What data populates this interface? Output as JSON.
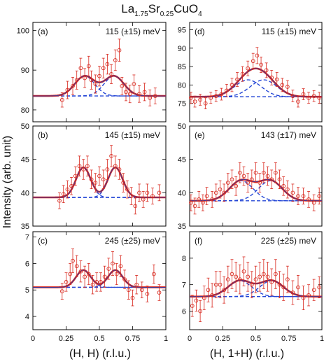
{
  "figure": {
    "title_main": "La",
    "title_sub1": "1.75",
    "title_mid": "Sr",
    "title_sub2": "0.25",
    "title_end": "CuO",
    "title_sub3": "4",
    "ylabel": "Intensity (arb. unit)",
    "xlabel_left": "(H, H) (r.l.u.)",
    "xlabel_right": "(H, 1+H) (r.l.u.)",
    "colors": {
      "data": "#d82a20",
      "fit": "#d8241c",
      "components": "#2547d6"
    }
  },
  "chart_data": [
    {
      "id": "a",
      "type": "scatter",
      "panel_label": "(a)",
      "energy_label": "115 (±15) meV",
      "xlim": [
        0,
        1
      ],
      "ylim": [
        77,
        102
      ],
      "yticks": [
        80,
        90,
        100
      ],
      "xticks": [
        0,
        0.25,
        0.5,
        0.75,
        1
      ],
      "xtick_labels": [
        "0",
        "0.25",
        "0.5",
        "0.75",
        "1"
      ],
      "show_xtick_labels": false,
      "fit": {
        "baseline": 83.5,
        "peaks": [
          {
            "center": 0.39,
            "amp": 5.0,
            "sigma": 0.075
          },
          {
            "center": 0.61,
            "amp": 5.0,
            "sigma": 0.075
          }
        ]
      },
      "points": [
        [
          0.22,
          82.5,
          1.8
        ],
        [
          0.26,
          85.0,
          2.2
        ],
        [
          0.3,
          86.0,
          2.2
        ],
        [
          0.33,
          87.5,
          2.3
        ],
        [
          0.36,
          90.5,
          2.5
        ],
        [
          0.39,
          88.0,
          2.4
        ],
        [
          0.42,
          91.0,
          2.5
        ],
        [
          0.44,
          87.5,
          2.3
        ],
        [
          0.47,
          86.5,
          2.3
        ],
        [
          0.5,
          88.5,
          2.5
        ],
        [
          0.53,
          90.5,
          2.5
        ],
        [
          0.56,
          91.5,
          2.5
        ],
        [
          0.59,
          89.0,
          2.4
        ],
        [
          0.62,
          92.5,
          2.6
        ],
        [
          0.65,
          95.0,
          2.8
        ],
        [
          0.67,
          86.0,
          2.2
        ],
        [
          0.7,
          84.5,
          2.2
        ],
        [
          0.73,
          84.0,
          2.2
        ],
        [
          0.76,
          86.5,
          2.3
        ],
        [
          0.8,
          84.0,
          2.1
        ],
        [
          0.84,
          84.5,
          2.2
        ],
        [
          0.88,
          83.0,
          2.0
        ],
        [
          0.92,
          83.5,
          2.0
        ]
      ]
    },
    {
      "id": "b",
      "type": "scatter",
      "panel_label": "(b)",
      "energy_label": "145 (±15) meV",
      "xlim": [
        0,
        1
      ],
      "ylim": [
        35,
        50
      ],
      "yticks": [
        35,
        40,
        45,
        50
      ],
      "xticks": [
        0,
        0.25,
        0.5,
        0.75,
        1
      ],
      "xtick_labels": [
        "0",
        "0.25",
        "0.5",
        "0.75",
        "1"
      ],
      "show_xtick_labels": false,
      "fit": {
        "baseline": 39.3,
        "peaks": [
          {
            "center": 0.38,
            "amp": 4.5,
            "sigma": 0.055
          },
          {
            "center": 0.62,
            "amp": 4.5,
            "sigma": 0.055
          }
        ]
      },
      "points": [
        [
          0.2,
          38.8,
          1.2
        ],
        [
          0.23,
          39.8,
          1.3
        ],
        [
          0.26,
          40.5,
          1.3
        ],
        [
          0.29,
          41.0,
          1.3
        ],
        [
          0.32,
          42.5,
          1.4
        ],
        [
          0.35,
          44.0,
          1.5
        ],
        [
          0.38,
          43.5,
          1.5
        ],
        [
          0.41,
          44.0,
          1.5
        ],
        [
          0.44,
          42.0,
          1.4
        ],
        [
          0.47,
          41.5,
          1.4
        ],
        [
          0.5,
          42.5,
          1.4
        ],
        [
          0.53,
          42.0,
          1.4
        ],
        [
          0.56,
          43.5,
          1.5
        ],
        [
          0.59,
          45.5,
          1.6
        ],
        [
          0.62,
          44.0,
          1.5
        ],
        [
          0.65,
          43.5,
          1.5
        ],
        [
          0.68,
          41.5,
          1.4
        ],
        [
          0.71,
          40.5,
          1.3
        ],
        [
          0.74,
          39.5,
          1.3
        ],
        [
          0.77,
          38.0,
          1.2
        ],
        [
          0.8,
          40.0,
          1.3
        ],
        [
          0.83,
          39.0,
          1.2
        ],
        [
          0.86,
          40.0,
          1.3
        ],
        [
          0.9,
          39.5,
          1.2
        ],
        [
          0.95,
          40.0,
          1.2
        ]
      ]
    },
    {
      "id": "c",
      "type": "scatter",
      "panel_label": "(c)",
      "energy_label": "245 (±25) meV",
      "xlim": [
        0,
        1
      ],
      "ylim": [
        3.5,
        7.2
      ],
      "yticks": [
        4,
        5,
        6,
        7
      ],
      "xticks": [
        0,
        0.25,
        0.5,
        0.75,
        1
      ],
      "xtick_labels": [
        "0",
        "0.25",
        "0.5",
        "0.75",
        "1"
      ],
      "show_xtick_labels": true,
      "fit": {
        "baseline": 5.1,
        "peaks": [
          {
            "center": 0.38,
            "amp": 0.65,
            "sigma": 0.055
          },
          {
            "center": 0.62,
            "amp": 0.65,
            "sigma": 0.055
          }
        ]
      },
      "points": [
        [
          0.22,
          4.95,
          0.3
        ],
        [
          0.25,
          5.3,
          0.35
        ],
        [
          0.28,
          5.6,
          0.4
        ],
        [
          0.3,
          6.1,
          0.45
        ],
        [
          0.33,
          5.9,
          0.4
        ],
        [
          0.36,
          5.7,
          0.4
        ],
        [
          0.39,
          5.5,
          0.4
        ],
        [
          0.42,
          5.6,
          0.4
        ],
        [
          0.45,
          5.2,
          0.35
        ],
        [
          0.48,
          5.3,
          0.35
        ],
        [
          0.51,
          5.3,
          0.35
        ],
        [
          0.54,
          5.5,
          0.4
        ],
        [
          0.57,
          5.8,
          0.4
        ],
        [
          0.6,
          6.0,
          0.45
        ],
        [
          0.63,
          5.6,
          0.4
        ],
        [
          0.66,
          5.9,
          0.4
        ],
        [
          0.69,
          5.4,
          0.35
        ],
        [
          0.72,
          5.0,
          0.35
        ],
        [
          0.75,
          4.7,
          0.3
        ],
        [
          0.78,
          5.2,
          0.35
        ],
        [
          0.82,
          5.0,
          0.3
        ],
        [
          0.86,
          4.85,
          0.3
        ],
        [
          0.91,
          5.6,
          0.35
        ],
        [
          0.95,
          4.9,
          0.3
        ]
      ]
    },
    {
      "id": "d",
      "type": "scatter",
      "panel_label": "(d)",
      "energy_label": "115 (±15) meV",
      "xlim": [
        0,
        1
      ],
      "ylim": [
        70,
        97
      ],
      "yticks": [
        75,
        80,
        85,
        90,
        95
      ],
      "xticks": [
        0,
        0.25,
        0.5,
        0.75,
        1
      ],
      "xtick_labels": [
        "0",
        "0.25",
        "0.5",
        "0.75",
        "1"
      ],
      "show_xtick_labels": false,
      "fit": {
        "baseline": 76.8,
        "peaks": [
          {
            "center": 0.44,
            "amp": 4.6,
            "sigma": 0.1
          },
          {
            "center": 0.56,
            "amp": 4.6,
            "sigma": 0.1
          }
        ]
      },
      "points": [
        [
          0.01,
          76.5,
          1.5
        ],
        [
          0.04,
          75.5,
          1.5
        ],
        [
          0.08,
          76.0,
          1.5
        ],
        [
          0.12,
          75.0,
          1.5
        ],
        [
          0.16,
          76.5,
          1.5
        ],
        [
          0.2,
          77.0,
          1.5
        ],
        [
          0.24,
          77.5,
          1.6
        ],
        [
          0.28,
          78.5,
          1.7
        ],
        [
          0.32,
          80.0,
          1.8
        ],
        [
          0.36,
          81.5,
          1.9
        ],
        [
          0.4,
          83.0,
          2.0
        ],
        [
          0.44,
          84.5,
          2.0
        ],
        [
          0.48,
          86.5,
          2.1
        ],
        [
          0.51,
          88.0,
          2.2
        ],
        [
          0.54,
          85.5,
          2.1
        ],
        [
          0.58,
          84.0,
          2.0
        ],
        [
          0.62,
          82.0,
          2.0
        ],
        [
          0.66,
          81.5,
          1.9
        ],
        [
          0.7,
          80.0,
          1.8
        ],
        [
          0.74,
          79.5,
          1.7
        ],
        [
          0.78,
          77.0,
          1.6
        ],
        [
          0.82,
          75.5,
          1.5
        ],
        [
          0.86,
          77.5,
          1.5
        ],
        [
          0.9,
          76.5,
          1.5
        ],
        [
          0.94,
          77.0,
          1.5
        ],
        [
          0.98,
          76.5,
          1.5
        ]
      ]
    },
    {
      "id": "e",
      "type": "scatter",
      "panel_label": "(e)",
      "energy_label": "143 (±17) meV",
      "xlim": [
        0,
        1
      ],
      "ylim": [
        35,
        50
      ],
      "yticks": [
        35,
        40,
        45,
        50
      ],
      "xticks": [
        0,
        0.25,
        0.5,
        0.75,
        1
      ],
      "xtick_labels": [
        "0",
        "0.25",
        "0.5",
        "0.75",
        "1"
      ],
      "show_xtick_labels": false,
      "fit": {
        "baseline": 38.8,
        "peaks": [
          {
            "center": 0.39,
            "amp": 3.0,
            "sigma": 0.09
          },
          {
            "center": 0.61,
            "amp": 3.0,
            "sigma": 0.09
          }
        ]
      },
      "points": [
        [
          0.01,
          38.5,
          1.2
        ],
        [
          0.04,
          38.0,
          1.2
        ],
        [
          0.07,
          39.0,
          1.2
        ],
        [
          0.1,
          38.5,
          1.2
        ],
        [
          0.13,
          39.5,
          1.3
        ],
        [
          0.17,
          39.0,
          1.2
        ],
        [
          0.2,
          40.0,
          1.3
        ],
        [
          0.23,
          40.5,
          1.3
        ],
        [
          0.26,
          40.0,
          1.3
        ],
        [
          0.29,
          41.5,
          1.4
        ],
        [
          0.32,
          42.0,
          1.4
        ],
        [
          0.35,
          41.0,
          1.4
        ],
        [
          0.38,
          43.0,
          1.5
        ],
        [
          0.41,
          42.5,
          1.4
        ],
        [
          0.44,
          41.5,
          1.4
        ],
        [
          0.47,
          42.0,
          1.4
        ],
        [
          0.5,
          43.0,
          1.5
        ],
        [
          0.53,
          41.5,
          1.4
        ],
        [
          0.56,
          43.0,
          1.5
        ],
        [
          0.59,
          42.5,
          1.4
        ],
        [
          0.62,
          42.0,
          1.4
        ],
        [
          0.65,
          43.0,
          1.5
        ],
        [
          0.68,
          42.0,
          1.4
        ],
        [
          0.71,
          41.0,
          1.4
        ],
        [
          0.74,
          40.5,
          1.3
        ],
        [
          0.78,
          40.0,
          1.3
        ],
        [
          0.82,
          39.5,
          1.3
        ],
        [
          0.86,
          39.5,
          1.2
        ],
        [
          0.9,
          39.0,
          1.2
        ],
        [
          0.94,
          38.5,
          1.2
        ],
        [
          0.98,
          39.5,
          1.2
        ]
      ]
    },
    {
      "id": "f",
      "type": "scatter",
      "panel_label": "(f)",
      "energy_label": "225 (±25) meV",
      "xlim": [
        0,
        1
      ],
      "ylim": [
        5.3,
        9.0
      ],
      "yticks": [
        6,
        7,
        8
      ],
      "xticks": [
        0,
        0.25,
        0.5,
        0.75,
        1
      ],
      "xtick_labels": [
        "0",
        "0.25",
        "0.5",
        "0.75",
        "1"
      ],
      "show_xtick_labels": true,
      "fit": {
        "baseline": 6.55,
        "peaks": [
          {
            "center": 0.38,
            "amp": 0.6,
            "sigma": 0.09
          },
          {
            "center": 0.62,
            "amp": 0.6,
            "sigma": 0.09
          }
        ]
      },
      "points": [
        [
          0.02,
          6.2,
          0.4
        ],
        [
          0.05,
          6.4,
          0.4
        ],
        [
          0.08,
          6.0,
          0.4
        ],
        [
          0.11,
          6.5,
          0.45
        ],
        [
          0.14,
          6.8,
          0.45
        ],
        [
          0.17,
          6.6,
          0.45
        ],
        [
          0.2,
          7.0,
          0.5
        ],
        [
          0.23,
          7.0,
          0.5
        ],
        [
          0.26,
          6.8,
          0.5
        ],
        [
          0.29,
          7.2,
          0.5
        ],
        [
          0.32,
          7.4,
          0.55
        ],
        [
          0.35,
          7.3,
          0.55
        ],
        [
          0.38,
          7.2,
          0.55
        ],
        [
          0.41,
          7.5,
          0.55
        ],
        [
          0.44,
          7.3,
          0.55
        ],
        [
          0.47,
          7.0,
          0.5
        ],
        [
          0.5,
          7.2,
          0.5
        ],
        [
          0.53,
          7.3,
          0.55
        ],
        [
          0.56,
          7.4,
          0.55
        ],
        [
          0.59,
          7.3,
          0.55
        ],
        [
          0.62,
          7.1,
          0.5
        ],
        [
          0.65,
          7.4,
          0.55
        ],
        [
          0.68,
          7.0,
          0.5
        ],
        [
          0.71,
          6.9,
          0.5
        ],
        [
          0.74,
          7.2,
          0.5
        ],
        [
          0.78,
          6.7,
          0.45
        ],
        [
          0.82,
          6.9,
          0.45
        ],
        [
          0.86,
          6.5,
          0.45
        ],
        [
          0.9,
          6.6,
          0.4
        ],
        [
          0.94,
          6.8,
          0.4
        ],
        [
          0.98,
          6.9,
          0.4
        ]
      ]
    }
  ]
}
